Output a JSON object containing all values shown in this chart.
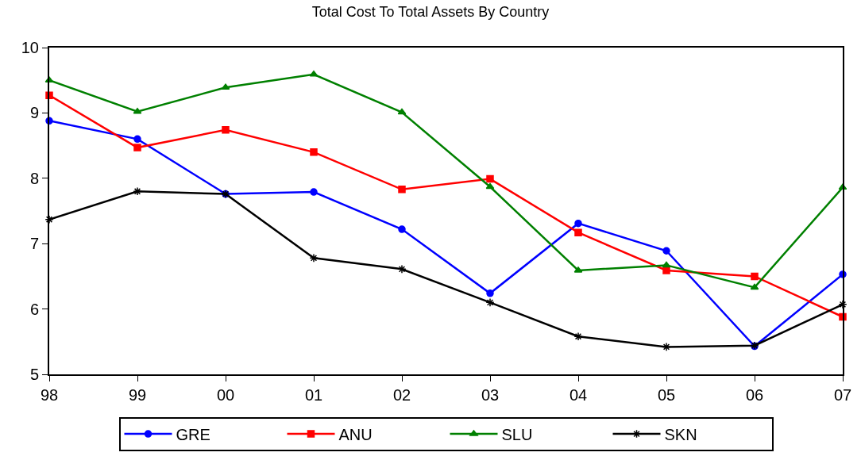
{
  "chart_data": {
    "type": "line",
    "title": "Total Cost To Total Assets By Country",
    "categories": [
      "98",
      "99",
      "00",
      "01",
      "02",
      "03",
      "04",
      "05",
      "06",
      "07"
    ],
    "ylim": [
      5,
      10
    ],
    "yticks": [
      5,
      6,
      7,
      8,
      9,
      10
    ],
    "legend": "bottom",
    "line_style": "solid",
    "series": [
      {
        "name": "GRE",
        "color": "#0000ff",
        "marker": "circle",
        "values": [
          8.88,
          8.6,
          7.76,
          7.79,
          7.22,
          6.24,
          7.31,
          6.89,
          5.43,
          6.53
        ]
      },
      {
        "name": "ANU",
        "color": "#ff0000",
        "marker": "square",
        "values": [
          9.27,
          8.47,
          8.74,
          8.4,
          7.83,
          7.99,
          7.17,
          6.59,
          6.5,
          5.88
        ]
      },
      {
        "name": "SLU",
        "color": "#008000",
        "marker": "triangle",
        "values": [
          9.5,
          9.02,
          9.39,
          9.59,
          9.01,
          7.87,
          6.59,
          6.67,
          6.33,
          7.86
        ]
      },
      {
        "name": "SKN",
        "color": "#000000",
        "marker": "cross",
        "values": [
          7.37,
          7.8,
          7.76,
          6.78,
          6.61,
          6.1,
          5.58,
          5.42,
          5.44,
          6.07
        ]
      }
    ]
  }
}
